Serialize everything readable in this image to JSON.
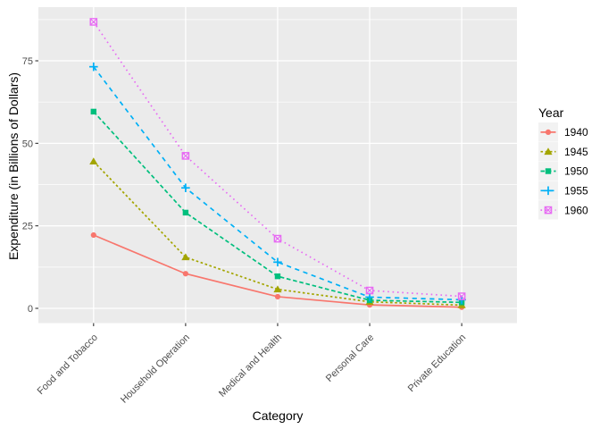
{
  "chart_data": {
    "type": "line",
    "title": "",
    "xlabel": "Category",
    "ylabel": "Expenditure (in Billions of Dollars)",
    "legend_title": "Year",
    "legend_position": "right",
    "grid": "on",
    "panel_style": "ggplot-grey",
    "categories": [
      "Food and Tobacco",
      "Household Operation",
      "Medical and Health",
      "Personal Care",
      "Private Education"
    ],
    "x_tick_angle_deg": 45,
    "y_ticks": [
      "0",
      "25",
      "50",
      "75"
    ],
    "y_tick_values": [
      0,
      25,
      50,
      75
    ],
    "y_minor_tick_values": [
      12.5,
      37.5,
      62.5,
      87.5
    ],
    "ylim": [
      -4.3,
      91.1
    ],
    "series": [
      {
        "name": "1940",
        "values": [
          22.2,
          10.5,
          3.53,
          1.04,
          0.341
        ],
        "color": "#F8766D",
        "linetype": "solid",
        "marker": "circle"
      },
      {
        "name": "1945",
        "values": [
          44.5,
          15.5,
          5.76,
          1.98,
          0.974
        ],
        "color": "#A3A500",
        "linetype": "dash22",
        "marker": "triangle"
      },
      {
        "name": "1950",
        "values": [
          59.6,
          29.0,
          9.71,
          2.45,
          1.8
        ],
        "color": "#00BF7D",
        "linetype": "dash42",
        "marker": "square"
      },
      {
        "name": "1955",
        "values": [
          73.2,
          36.5,
          14.0,
          3.4,
          2.6
        ],
        "color": "#00B0F6",
        "linetype": "dash44",
        "marker": "plus"
      },
      {
        "name": "1960",
        "values": [
          86.8,
          46.2,
          21.1,
          5.4,
          3.64
        ],
        "color": "#E76BF3",
        "linetype": "dash13",
        "marker": "square-cross"
      }
    ],
    "colors": {
      "panel_background": "#EBEBEB",
      "grid": "#FFFFFF",
      "tick_marks": "#333333",
      "tick_labels": "#4D4D4D",
      "axis_titles": "#000000",
      "legend_text": "#000000",
      "legend_key_background": "#F2F2F2",
      "page_background": "#FFFFFF"
    }
  }
}
